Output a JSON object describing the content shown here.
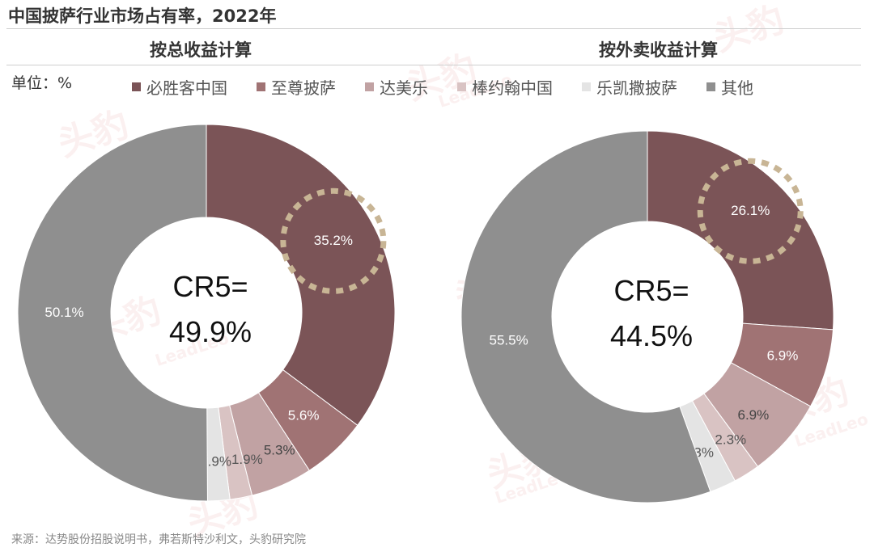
{
  "header": {
    "title": "中国披萨行业市场占有率，2022年",
    "unit_label": "单位：%",
    "source": "来源：达势股份招股说明书，弗若斯特沙利文，头豹研究院"
  },
  "watermark": {
    "logo_text": "头豹",
    "brand_text": "LeadLeo"
  },
  "legend": [
    {
      "name": "必胜客中国",
      "color": "#7b5457"
    },
    {
      "name": "至尊披萨",
      "color": "#a07374"
    },
    {
      "name": "达美乐",
      "color": "#c1a2a3"
    },
    {
      "name": "棒约翰中国",
      "color": "#d9c3c3"
    },
    {
      "name": "乐凯撒披萨",
      "color": "#e4e4e4"
    },
    {
      "name": "其他",
      "color": "#8f8f8f"
    }
  ],
  "chart_data": [
    {
      "type": "pie",
      "title": "按总收益计算",
      "center_label_line1": "CR5=",
      "center_label_line2": "49.9%",
      "categories": [
        "必胜客中国",
        "至尊披萨",
        "达美乐",
        "棒约翰中国",
        "乐凯撒披萨",
        "其他"
      ],
      "values": [
        35.2,
        5.6,
        5.3,
        1.9,
        1.9,
        50.1
      ],
      "labels": [
        "35.2%",
        "5.6%",
        "5.3%",
        "1.9%",
        "1.9%",
        "50.1%"
      ],
      "highlight": "必胜客中国",
      "hole": "donut"
    },
    {
      "type": "pie",
      "title": "按外卖收益计算",
      "center_label_line1": "CR5=",
      "center_label_line2": "44.5%",
      "categories": [
        "必胜客中国",
        "至尊披萨",
        "达美乐",
        "棒约翰中国",
        "乐凯撒披萨",
        "其他"
      ],
      "values": [
        26.1,
        6.9,
        6.9,
        2.3,
        2.3,
        55.5
      ],
      "labels": [
        "26.1%",
        "6.9%",
        "6.9%",
        "2.3%",
        "2.3%",
        "55.5%"
      ],
      "highlight": "必胜客中国",
      "hole": "donut"
    }
  ]
}
